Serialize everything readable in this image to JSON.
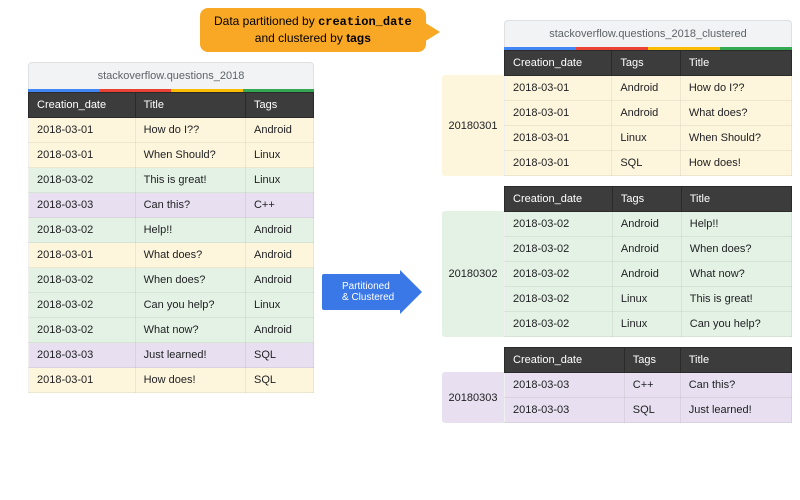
{
  "colors": {
    "callout_bg": "#f9a825",
    "header_bg": "#3c3c3c",
    "header_fg": "#ffffff",
    "arrow": "#3b78e7",
    "tint_yellow": "#fdf6dc",
    "tint_green": "#e4f2e5",
    "tint_purple": "#e8e0f0",
    "google_bar": [
      "#4285f4",
      "#ea4335",
      "#fbbc04",
      "#34a853"
    ]
  },
  "callout": {
    "line1_a": "Data partitioned by ",
    "line1_b": "creation_date",
    "line2_a": "and clustered by ",
    "line2_b": "tags"
  },
  "arrow": {
    "line1": "Partitioned",
    "line2": "& Clustered"
  },
  "source": {
    "title": "stackoverflow.questions_2018",
    "columns": [
      "Creation_date",
      "Title",
      "Tags"
    ],
    "rows": [
      {
        "date": "2018-03-01",
        "title": "How do I??",
        "tags": "Android",
        "tint": "tint_yellow"
      },
      {
        "date": "2018-03-01",
        "title": "When Should?",
        "tags": "Linux",
        "tint": "tint_yellow"
      },
      {
        "date": "2018-03-02",
        "title": "This is great!",
        "tags": "Linux",
        "tint": "tint_green"
      },
      {
        "date": "2018-03-03",
        "title": "Can this?",
        "tags": "C++",
        "tint": "tint_purple"
      },
      {
        "date": "2018-03-02",
        "title": "Help!!",
        "tags": "Android",
        "tint": "tint_green"
      },
      {
        "date": "2018-03-01",
        "title": "What does?",
        "tags": "Android",
        "tint": "tint_yellow"
      },
      {
        "date": "2018-03-02",
        "title": "When does?",
        "tags": "Android",
        "tint": "tint_green"
      },
      {
        "date": "2018-03-02",
        "title": "Can you help?",
        "tags": "Linux",
        "tint": "tint_green"
      },
      {
        "date": "2018-03-02",
        "title": "What now?",
        "tags": "Android",
        "tint": "tint_green"
      },
      {
        "date": "2018-03-03",
        "title": "Just learned!",
        "tags": "SQL",
        "tint": "tint_purple"
      },
      {
        "date": "2018-03-01",
        "title": "How does!",
        "tags": "SQL",
        "tint": "tint_yellow"
      }
    ]
  },
  "clustered": {
    "title": "stackoverflow.questions_2018_clustered",
    "columns": [
      "Creation_date",
      "Tags",
      "Title"
    ],
    "partitions": [
      {
        "label": "20180301",
        "tint": "tint_yellow",
        "rows": [
          {
            "date": "2018-03-01",
            "tags": "Android",
            "title": "How do I??"
          },
          {
            "date": "2018-03-01",
            "tags": "Android",
            "title": "What does?"
          },
          {
            "date": "2018-03-01",
            "tags": "Linux",
            "title": "When Should?"
          },
          {
            "date": "2018-03-01",
            "tags": "SQL",
            "title": "How does!"
          }
        ]
      },
      {
        "label": "20180302",
        "tint": "tint_green",
        "rows": [
          {
            "date": "2018-03-02",
            "tags": "Android",
            "title": "Help!!"
          },
          {
            "date": "2018-03-02",
            "tags": "Android",
            "title": "When does?"
          },
          {
            "date": "2018-03-02",
            "tags": "Android",
            "title": "What now?"
          },
          {
            "date": "2018-03-02",
            "tags": "Linux",
            "title": "This is great!"
          },
          {
            "date": "2018-03-02",
            "tags": "Linux",
            "title": "Can you help?"
          }
        ]
      },
      {
        "label": "20180303",
        "tint": "tint_purple",
        "rows": [
          {
            "date": "2018-03-03",
            "tags": "C++",
            "title": "Can this?"
          },
          {
            "date": "2018-03-03",
            "tags": "SQL",
            "title": "Just learned!"
          }
        ]
      }
    ]
  }
}
